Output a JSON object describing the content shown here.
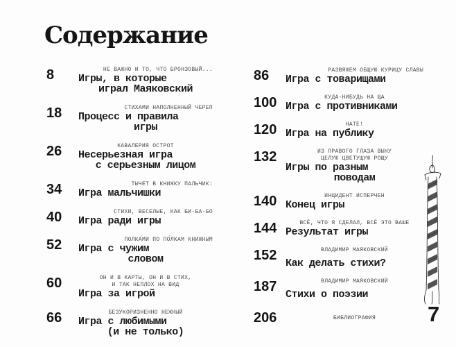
{
  "page": {
    "title": "Содержание",
    "folio": "7"
  },
  "toc": {
    "left": [
      {
        "page": "8",
        "captions": [
          {
            "text": "НЕ ВАЖНО И ТО, ЧТО БРОНЗОВЫЙ...",
            "align": "right"
          }
        ],
        "title_lines": [
          {
            "text": "Игры, в которые",
            "align": "left"
          },
          {
            "text": "играл Маяковский",
            "align": "center"
          }
        ]
      },
      {
        "page": "18",
        "captions": [
          {
            "text": "СТИХАМИ НАПОЛНЕННЫЙ ЧЕРЕП",
            "align": "right"
          }
        ],
        "title_lines": [
          {
            "text": "Процесс и правила",
            "align": "left"
          },
          {
            "text": "игры",
            "align": "center"
          }
        ]
      },
      {
        "page": "26",
        "captions": [
          {
            "text": "КАВАЛЕРИЯ ОСТРОТ",
            "align": "center"
          }
        ],
        "title_lines": [
          {
            "text": "Несерьезная игра",
            "align": "left"
          },
          {
            "text": "с серьезным лицом",
            "align": "center"
          }
        ]
      },
      {
        "page": "34",
        "captions": [
          {
            "text": "ТЫЧЕТ В КНИЖКУ ПАЛЬЧИК:",
            "align": "right"
          }
        ],
        "title_lines": [
          {
            "text": "Игра мальчишки",
            "align": "left"
          }
        ]
      },
      {
        "page": "40",
        "captions": [
          {
            "text": "СТИХИ, ВЕСЕЛЫЕ, КАК БИ-БА-БО",
            "align": "right"
          }
        ],
        "title_lines": [
          {
            "text": "Игра ради игры",
            "align": "left"
          }
        ]
      },
      {
        "page": "52",
        "captions": [
          {
            "text": "ПОЛКА́МИ ПО ПО́ЛКАМ КНИЖНЫМ",
            "align": "right"
          }
        ],
        "title_lines": [
          {
            "text": "Игра с чужим",
            "align": "left"
          },
          {
            "text": "словом",
            "align": "center"
          }
        ]
      },
      {
        "page": "60",
        "captions": [
          {
            "text": "ОН И В КАРТЫ, ОН И В СТИХ,",
            "align": "center"
          },
          {
            "text": "И ТАК НЕПЛОХ НА ВИД",
            "align": "center"
          }
        ],
        "title_lines": [
          {
            "text": "Игра за игрой",
            "align": "left"
          }
        ]
      },
      {
        "page": "66",
        "captions": [
          {
            "text": "БЕЗУКОРИЗНЕННО НЕЖНЫЙ",
            "align": "center"
          }
        ],
        "title_lines": [
          {
            "text": "Игра с любимыми",
            "align": "left"
          },
          {
            "text": "(и не только)",
            "align": "center"
          }
        ]
      }
    ],
    "right": [
      {
        "page": "86",
        "captions": [
          {
            "text": "РАЗВЯЖЕМ ОБЩУЮ КУРИЦУ СЛАВЫ",
            "align": "right"
          }
        ],
        "title_lines": [
          {
            "text": "Игра с товарищами",
            "align": "left"
          }
        ]
      },
      {
        "page": "100",
        "captions": [
          {
            "text": "КУДА-НИБУДЬ НА ЩА",
            "align": "center"
          }
        ],
        "title_lines": [
          {
            "text": "Игра с противниками",
            "align": "left"
          }
        ]
      },
      {
        "page": "120",
        "captions": [
          {
            "text": "НАТЕ!",
            "align": "center"
          }
        ],
        "title_lines": [
          {
            "text": "Игра на публику",
            "align": "left"
          }
        ]
      },
      {
        "page": "132",
        "captions": [
          {
            "text": "ИЗ ПРАВОГО ГЛАЗА ВЫНУ",
            "align": "center"
          },
          {
            "text": "ЦЕЛУЮ ЦВЕТУЩУЮ РОЩУ",
            "align": "center"
          }
        ],
        "title_lines": [
          {
            "text": "Игры по разным",
            "align": "left"
          },
          {
            "text": "поводам",
            "align": "center"
          }
        ]
      },
      {
        "page": "140",
        "captions": [
          {
            "text": "ИНЦИДЕНТ ИСПЕРЧЕН",
            "align": "center"
          }
        ],
        "title_lines": [
          {
            "text": "Конец игры",
            "align": "left"
          }
        ]
      },
      {
        "page": "144",
        "captions": [
          {
            "text": "ВСЁ, ЧТО Я СДЕЛАЛ, ВСЁ ЭТО ВАШЕ",
            "align": "center"
          }
        ],
        "title_lines": [
          {
            "text": "Результат игры",
            "align": "left"
          }
        ]
      },
      {
        "page": "152",
        "captions": [
          {
            "text": "ВЛАДИМИР МАЯКОВСКИЙ",
            "align": "center"
          }
        ],
        "caption_gap": true,
        "title_lines": [
          {
            "text": "Как делать стихи?",
            "align": "left"
          }
        ]
      },
      {
        "page": "187",
        "captions": [
          {
            "text": "ВЛАДИМИР МАЯКОВСКИЙ",
            "align": "center"
          }
        ],
        "caption_gap": true,
        "title_lines": [
          {
            "text": "Стихи о поэзии",
            "align": "left"
          }
        ]
      },
      {
        "page": "206",
        "captions": [
          {
            "text": "БИБЛИОГРАФИЯ",
            "align": "center"
          }
        ],
        "title_lines": []
      }
    ]
  }
}
